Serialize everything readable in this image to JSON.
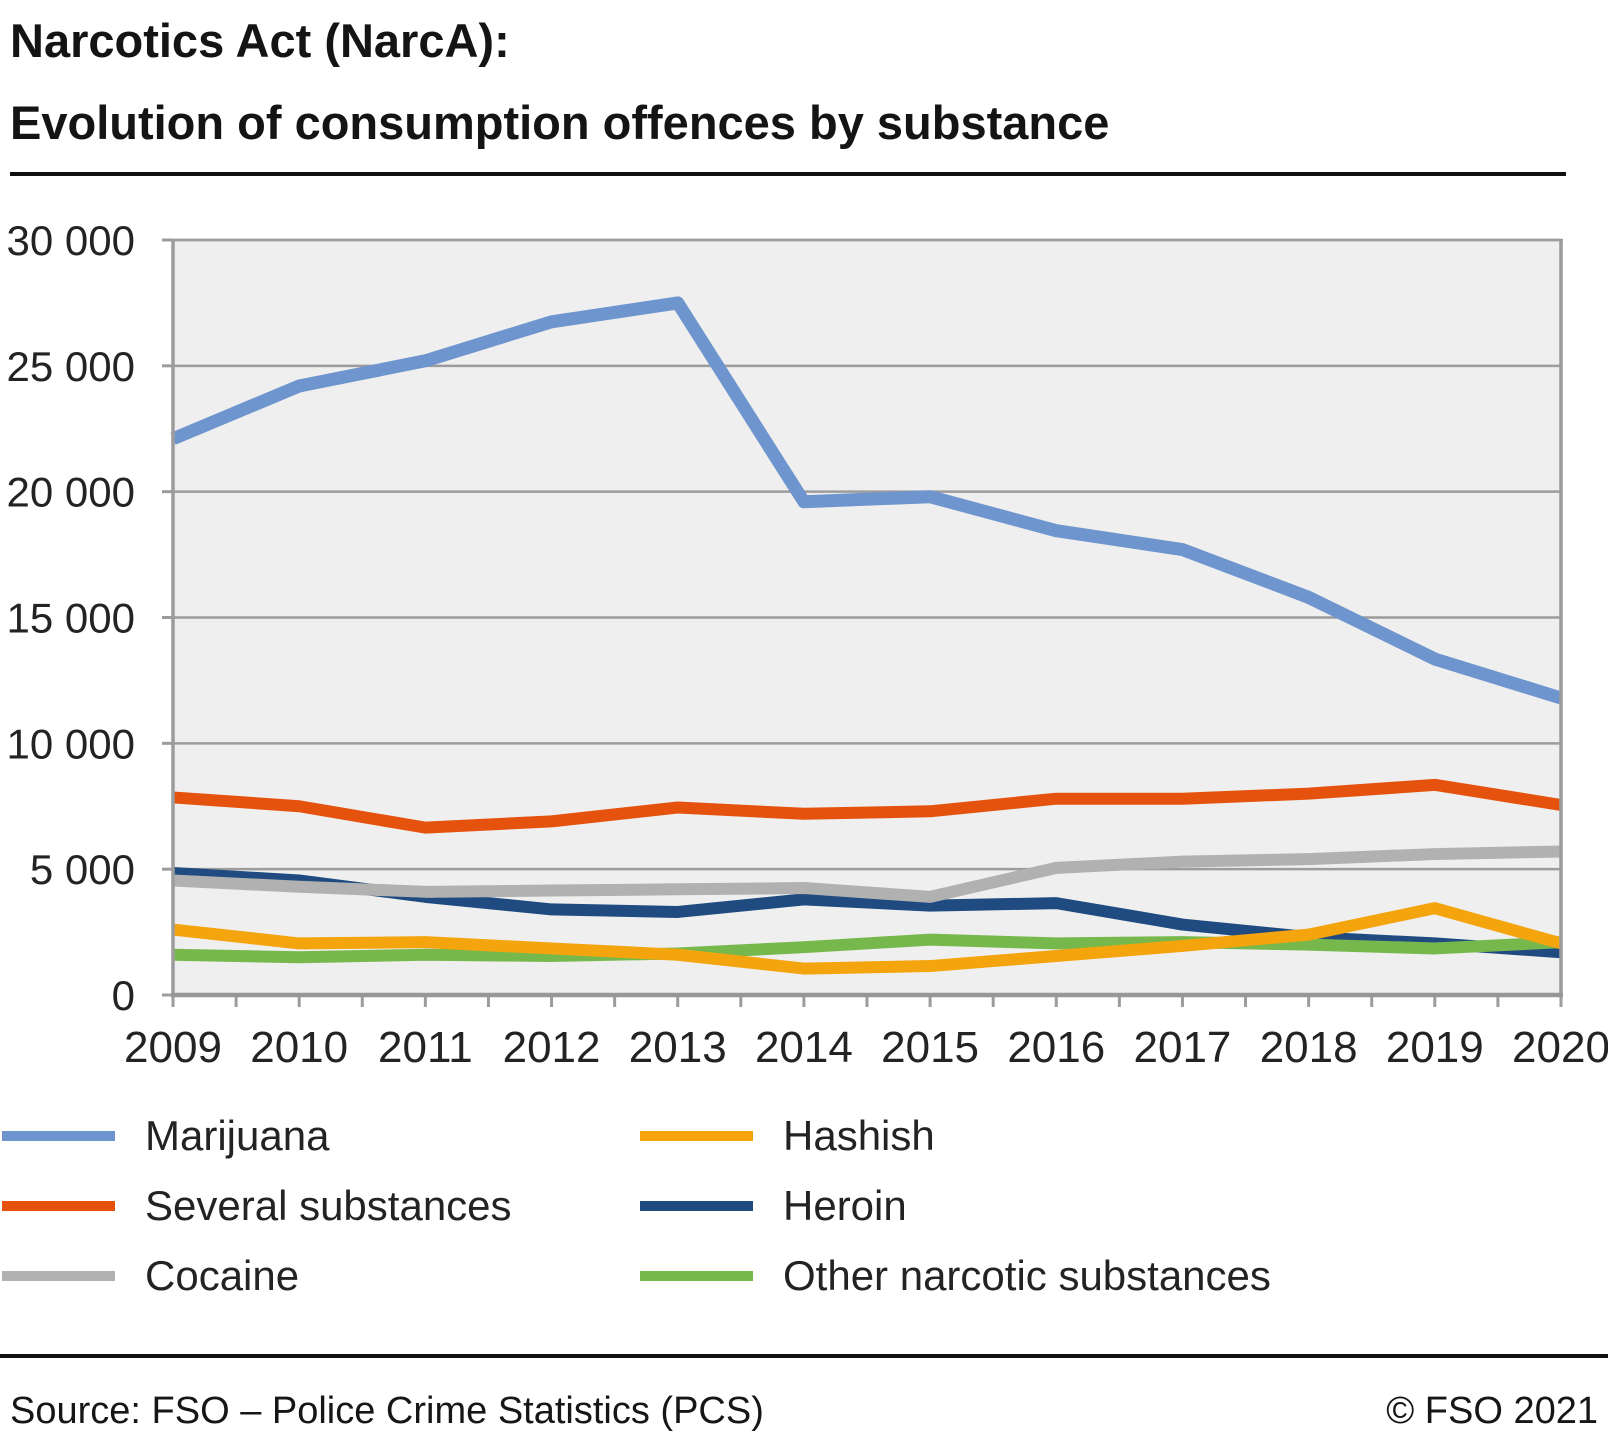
{
  "title": {
    "line1": "Narcotics Act (NarcA):",
    "line2": "Evolution of consumption offences by substance"
  },
  "footer": {
    "source": "Source: FSO – Police Crime Statistics (PCS)",
    "copyright": "© FSO 2021"
  },
  "chart_data": {
    "type": "line",
    "title": "Narcotics Act (NarcA): Evolution of consumption offences by substance",
    "x": [
      2009,
      2010,
      2011,
      2012,
      2013,
      2014,
      2015,
      2016,
      2017,
      2018,
      2019,
      2020
    ],
    "series": [
      {
        "name": "Marijuana",
        "color": "#6E95CE",
        "values": [
          22100,
          24200,
          25200,
          26750,
          27500,
          19600,
          19800,
          18450,
          17700,
          15800,
          13350,
          11800
        ]
      },
      {
        "name": "Several substances",
        "color": "#E5520E",
        "values": [
          7850,
          7500,
          6650,
          6900,
          7450,
          7200,
          7300,
          7800,
          7800,
          8000,
          8350,
          7550
        ]
      },
      {
        "name": "Cocaine",
        "color": "#B1B1B1",
        "values": [
          4550,
          4300,
          4100,
          4150,
          4200,
          4250,
          3900,
          5050,
          5300,
          5400,
          5600,
          5700
        ]
      },
      {
        "name": "Hashish",
        "color": "#F4A40D",
        "values": [
          2600,
          2050,
          2100,
          1850,
          1600,
          1050,
          1150,
          1550,
          1950,
          2400,
          3450,
          2050
        ]
      },
      {
        "name": "Heroin",
        "color": "#1F4B80",
        "values": [
          4850,
          4550,
          3900,
          3400,
          3300,
          3800,
          3550,
          3650,
          2800,
          2300,
          2050,
          1700
        ]
      },
      {
        "name": "Other narcotic substances",
        "color": "#77B84D",
        "values": [
          1600,
          1500,
          1600,
          1550,
          1650,
          1900,
          2200,
          2050,
          2100,
          2000,
          1850,
          2100
        ]
      }
    ],
    "xlabel": "",
    "ylabel": "",
    "ylim": [
      0,
      30000
    ],
    "ytick_step": 5000,
    "ytick_labels": [
      "0",
      "5 000",
      "10 000",
      "15 000",
      "20 000",
      "25 000",
      "30 000"
    ],
    "grid": "horizontal",
    "plot_background": "#EFEFEF",
    "grid_color": "#9C9C9C",
    "legend_position": "below",
    "draw_order": [
      0,
      1,
      4,
      2,
      5,
      3
    ]
  }
}
